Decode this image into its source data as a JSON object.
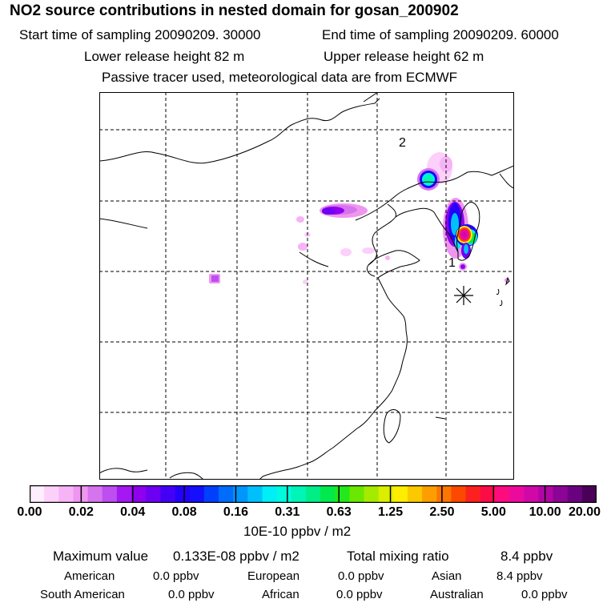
{
  "header": {
    "title": "NO2 source contributions in nested domain for gosan_200902",
    "start_time": "Start time of sampling 20090209. 30000",
    "end_time": "End time of sampling 20090209. 60000",
    "lower_release": "Lower release height   82 m",
    "upper_release": "Upper release height   62 m",
    "tracer_note": "Passive tracer used, meteorological data are from ECMWF"
  },
  "map": {
    "region_label_1": "1",
    "region_label_2": "2",
    "receptor_marker": "gosan-receptor"
  },
  "colorbar": {
    "colors": [
      "#ffeefc",
      "#fcd0fa",
      "#f6b4f6",
      "#ee96f0",
      "#d674ee",
      "#bd4ef0",
      "#a418f2",
      "#8e00ee",
      "#6c00f2",
      "#4400f6",
      "#2400fa",
      "#1410fc",
      "#0040fc",
      "#006cfc",
      "#0096fc",
      "#00c0fc",
      "#00eef6",
      "#00fade",
      "#00f6b6",
      "#00ee86",
      "#00ea4e",
      "#22e81c",
      "#6ae800",
      "#a6ea00",
      "#daee00",
      "#fcee00",
      "#fcc800",
      "#fc9e00",
      "#fc7600",
      "#fc4800",
      "#fc2020",
      "#fc0c46",
      "#fc0c7c",
      "#ec0a9e",
      "#d008a8",
      "#b006a4",
      "#8c0496",
      "#6a0280",
      "#4a0058"
    ],
    "ticks": [
      "0.00",
      "0.02",
      "0.04",
      "0.08",
      "0.16",
      "0.31",
      "0.63",
      "1.25",
      "2.50",
      "5.00",
      "10.00",
      "20.00"
    ],
    "units": "10E-10 ppbv / m2"
  },
  "summary": {
    "max_label": "Maximum value",
    "max_value": "0.133E-08 ppbv / m2",
    "total_label": "Total mixing ratio",
    "total_value": "8.4 ppbv",
    "regions": [
      {
        "name": "American",
        "value": "0.0 ppbv"
      },
      {
        "name": "European",
        "value": "0.0 ppbv"
      },
      {
        "name": "Asian",
        "value": "8.4 ppbv"
      },
      {
        "name": "South American",
        "value": "0.0 ppbv"
      },
      {
        "name": "African",
        "value": "0.0 ppbv"
      },
      {
        "name": "Australian",
        "value": "0.0 ppbv"
      }
    ]
  }
}
